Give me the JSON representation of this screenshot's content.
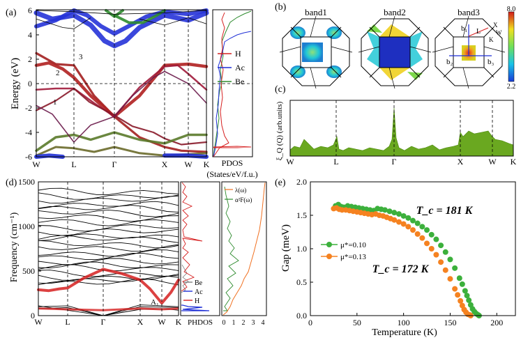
{
  "panels": {
    "a": {
      "label": "(a)",
      "ylabel": "Energy (eV)",
      "yticks": [
        "-6",
        "-4",
        "-2",
        "0",
        "2",
        "4",
        "6"
      ],
      "kpoints": [
        "W",
        "L",
        "Γ",
        "X",
        "W",
        "K"
      ],
      "band_labels": [
        "1",
        "2",
        "3"
      ],
      "pdos_xlabel_1": "PDOS",
      "pdos_xlabel_2": "(States/eV/f.u.)",
      "legend": [
        {
          "name": "H",
          "color": "#d62020"
        },
        {
          "name": "Ac",
          "color": "#1f2fd6"
        },
        {
          "name": "Be",
          "color": "#2e8b2e"
        }
      ]
    },
    "b": {
      "label": "(b)",
      "titles": [
        "band1",
        "band2",
        "band3"
      ],
      "colorbar_max": "8.0",
      "colorbar_min": "2.2",
      "bz_labels": [
        "b₁",
        "b₂",
        "b₃",
        "L",
        "X",
        "K",
        "W"
      ]
    },
    "c": {
      "label": "(c)",
      "ylabel": "ξ_Q (Q) (arb.units)",
      "kpoints": [
        "W",
        "L",
        "Γ",
        "X",
        "W",
        "K"
      ]
    },
    "d": {
      "label": "(d)",
      "ylabel": "Frequency (cm⁻¹)",
      "yticks": [
        "0",
        "500",
        "1000",
        "1500"
      ],
      "kpoints": [
        "W",
        "L",
        "Γ",
        "X",
        "W",
        "K"
      ],
      "mode_label": "A₁",
      "phdos_xlabel": "PHDOS",
      "phdos_legend": [
        {
          "name": "Be",
          "color": "#808080"
        },
        {
          "name": "Ac",
          "color": "#1f2fd6"
        },
        {
          "name": "H",
          "color": "#d62020"
        }
      ],
      "eliash_legend": [
        "λ(ω)",
        "α²F(ω)"
      ],
      "eliash_xticks": [
        "0",
        "1",
        "2",
        "3",
        "4"
      ]
    }
  },
  "chart_data": {
    "type": "scatter",
    "panel": "(e)",
    "xlabel": "Temperature (K)",
    "ylabel": "Gap (meV)",
    "xlim": [
      0,
      220
    ],
    "ylim": [
      0,
      2.0
    ],
    "xticks": [
      0,
      50,
      100,
      150,
      200
    ],
    "yticks": [
      0.0,
      0.5,
      1.0,
      1.5,
      2.0
    ],
    "series": [
      {
        "name": "μ*=0.10",
        "color": "#3cb03c",
        "tc_label": "T_c = 181 K",
        "x": [
          27,
          30,
          33,
          36,
          40,
          44,
          48,
          52,
          56,
          60,
          64,
          68,
          72,
          76,
          80,
          85,
          90,
          95,
          100,
          105,
          110,
          115,
          120,
          125,
          130,
          135,
          140,
          145,
          150,
          155,
          160,
          163,
          166,
          168,
          170,
          172,
          174,
          176,
          178,
          180,
          181
        ],
        "values": [
          1.64,
          1.66,
          1.63,
          1.62,
          1.64,
          1.63,
          1.62,
          1.61,
          1.6,
          1.59,
          1.58,
          1.57,
          1.6,
          1.59,
          1.58,
          1.56,
          1.54,
          1.52,
          1.49,
          1.46,
          1.42,
          1.38,
          1.33,
          1.28,
          1.21,
          1.14,
          1.05,
          0.95,
          0.84,
          0.71,
          0.56,
          0.47,
          0.37,
          0.3,
          0.23,
          0.16,
          0.1,
          0.06,
          0.03,
          0.01,
          0.0
        ]
      },
      {
        "name": "μ*=0.13",
        "color": "#f58220",
        "tc_label": "T_c = 172 K",
        "x": [
          25,
          28,
          31,
          34,
          38,
          42,
          46,
          50,
          54,
          58,
          62,
          66,
          70,
          74,
          78,
          82,
          86,
          90,
          95,
          100,
          105,
          110,
          115,
          120,
          125,
          130,
          135,
          140,
          145,
          150,
          155,
          158,
          161,
          163,
          165,
          167,
          169,
          171,
          172
        ],
        "values": [
          1.6,
          1.61,
          1.59,
          1.58,
          1.58,
          1.57,
          1.56,
          1.55,
          1.54,
          1.53,
          1.52,
          1.51,
          1.52,
          1.5,
          1.49,
          1.47,
          1.45,
          1.43,
          1.4,
          1.37,
          1.33,
          1.28,
          1.22,
          1.16,
          1.08,
          1.0,
          0.91,
          0.8,
          0.68,
          0.55,
          0.4,
          0.31,
          0.22,
          0.15,
          0.09,
          0.05,
          0.02,
          0.01,
          0.0
        ]
      }
    ]
  }
}
